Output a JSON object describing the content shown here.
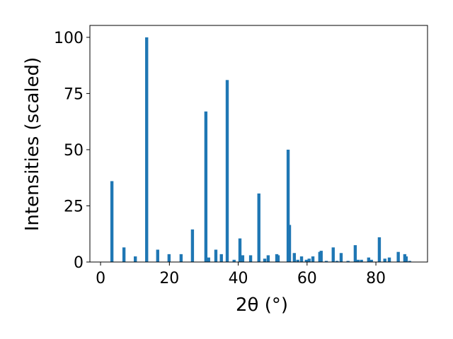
{
  "chart_data": {
    "type": "bar",
    "xlabel": "2θ (°)",
    "ylabel": "Intensities (scaled)",
    "x": [
      3.3,
      6.8,
      10.1,
      13.4,
      16.6,
      19.9,
      23.4,
      26.7,
      30.6,
      31.4,
      33.5,
      35.1,
      36.8,
      38.8,
      40.5,
      41.3,
      43.6,
      46.0,
      47.7,
      48.7,
      51.2,
      51.6,
      54.5,
      54.9,
      56.3,
      57.3,
      58.4,
      59.8,
      60.6,
      61.7,
      63.7,
      64.1,
      65.6,
      67.6,
      68.7,
      69.9,
      71.9,
      74.0,
      74.8,
      75.8,
      77.9,
      78.7,
      81.0,
      82.6,
      83.9,
      86.5,
      88.4,
      88.8,
      89.8
    ],
    "values": [
      36,
      6.5,
      2.5,
      100,
      5.5,
      3.5,
      3.5,
      14.5,
      67,
      2,
      5.5,
      3.5,
      81,
      1,
      10.5,
      3,
      3,
      30.5,
      1.5,
      3,
      3.5,
      3,
      50,
      16.5,
      4,
      1,
      2.5,
      1,
      1.5,
      2.5,
      4.5,
      5,
      0.5,
      6.5,
      0.5,
      4,
      0.5,
      7.5,
      1,
      1,
      2,
      1,
      11,
      1.5,
      2,
      4.5,
      3.5,
      2.5,
      0.5
    ],
    "color": "#1f77b4",
    "xlim": [
      -3.1,
      95
    ],
    "ylim": [
      0,
      105.3
    ],
    "xticks": [
      0,
      20,
      40,
      60,
      80
    ],
    "yticks": [
      0,
      25,
      50,
      75,
      100
    ]
  }
}
